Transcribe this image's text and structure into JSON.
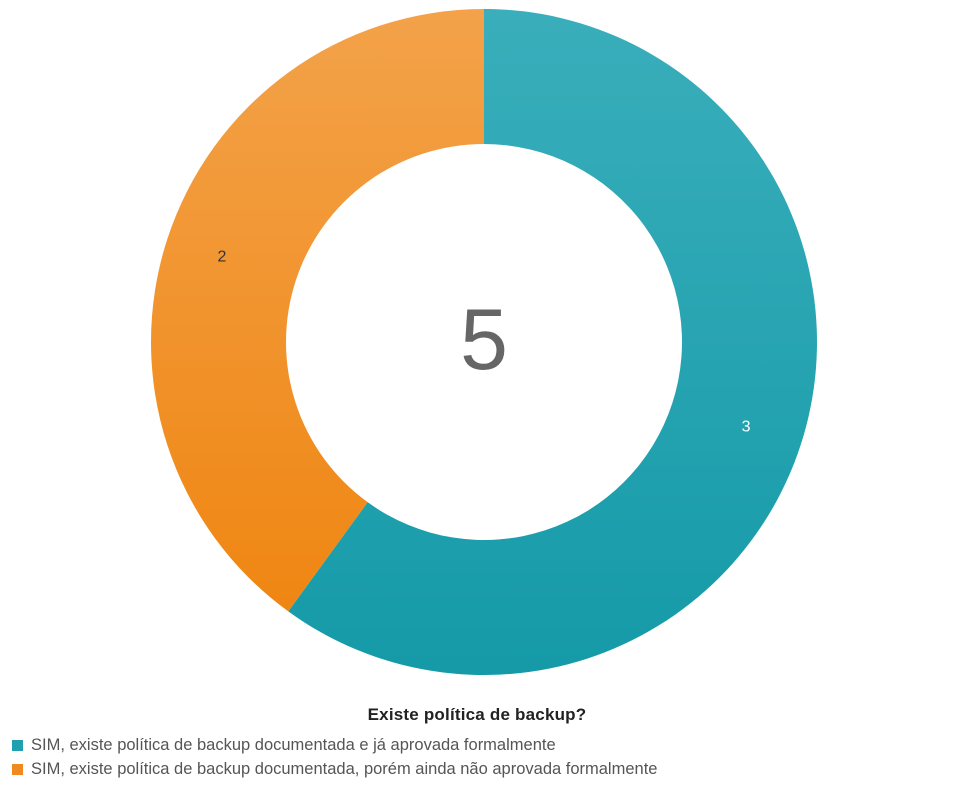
{
  "chart_data": {
    "type": "donut",
    "title": "Existe política de backup?",
    "center_label": "5",
    "categories": [
      "SIM, existe política de backup documentada e já aprovada formalmente",
      "SIM, existe política de backup documentada, porém ainda não aprovada formalmente"
    ],
    "values": [
      3,
      2
    ],
    "data_labels": [
      "3",
      "2"
    ],
    "colors": [
      "#1f9faf",
      "#f08a1e"
    ],
    "label_colors": [
      "#ffffff",
      "#333333"
    ],
    "start_angle_deg": 0,
    "direction": "clockwise",
    "legend_position": "bottom"
  }
}
